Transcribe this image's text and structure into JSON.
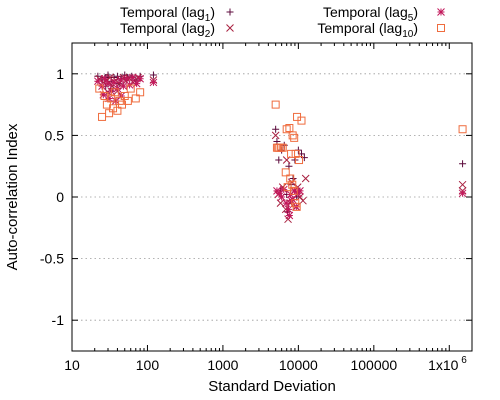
{
  "chart_data": {
    "type": "scatter",
    "xlabel": "Standard Deviation",
    "ylabel": "Auto-correlation Index",
    "xscale": "log",
    "xlim": [
      10,
      2000000
    ],
    "ylim": [
      -1.25,
      1.25
    ],
    "grid": "horizontal dotted",
    "legend_position": "top",
    "x_ticks": [
      {
        "value": 10,
        "label": "10"
      },
      {
        "value": 100,
        "label": "100"
      },
      {
        "value": 1000,
        "label": "1000"
      },
      {
        "value": 10000,
        "label": "10000"
      },
      {
        "value": 100000,
        "label": "100000"
      },
      {
        "value": 1000000,
        "label": "1x10"
      }
    ],
    "x_tick_exponent": "6",
    "y_ticks": [
      {
        "value": 1,
        "label": "1"
      },
      {
        "value": 0.5,
        "label": "0.5"
      },
      {
        "value": 0,
        "label": "0"
      },
      {
        "value": -0.5,
        "label": "-0.5"
      },
      {
        "value": -1,
        "label": "-1"
      }
    ],
    "series": [
      {
        "name": "Temporal (lag1)",
        "label_main": "Temporal (lag",
        "label_sub": "1",
        "marker": "plus",
        "color": "#5c0a3c",
        "points": [
          [
            22,
            0.98
          ],
          [
            25,
            0.95
          ],
          [
            28,
            0.97
          ],
          [
            30,
            0.99
          ],
          [
            33,
            0.94
          ],
          [
            36,
            0.97
          ],
          [
            40,
            0.98
          ],
          [
            45,
            0.96
          ],
          [
            50,
            0.99
          ],
          [
            55,
            0.97
          ],
          [
            62,
            0.98
          ],
          [
            70,
            0.95
          ],
          [
            80,
            0.98
          ],
          [
            120,
            0.99
          ],
          [
            28,
            0.9
          ],
          [
            35,
            0.88
          ],
          [
            42,
            0.92
          ],
          [
            5000,
            0.55
          ],
          [
            5200,
            0.45
          ],
          [
            5500,
            0.3
          ],
          [
            5800,
            0.05
          ],
          [
            6000,
            0.38
          ],
          [
            6500,
            0.42
          ],
          [
            7000,
            0.02
          ],
          [
            7500,
            0.25
          ],
          [
            8000,
            0.1
          ],
          [
            8500,
            0.15
          ],
          [
            9000,
            0.3
          ],
          [
            9500,
            0.0
          ],
          [
            10000,
            0.38
          ],
          [
            11000,
            0.35
          ],
          [
            12000,
            0.32
          ],
          [
            7200,
            -0.12
          ],
          [
            1500000,
            0.27
          ]
        ]
      },
      {
        "name": "Temporal (lag2)",
        "label_main": "Temporal (lag",
        "label_sub": "2",
        "marker": "x",
        "color": "#a8203f",
        "points": [
          [
            23,
            0.96
          ],
          [
            26,
            0.93
          ],
          [
            29,
            0.95
          ],
          [
            32,
            0.97
          ],
          [
            34,
            0.9
          ],
          [
            38,
            0.95
          ],
          [
            42,
            0.92
          ],
          [
            48,
            0.97
          ],
          [
            52,
            0.94
          ],
          [
            58,
            0.96
          ],
          [
            65,
            0.93
          ],
          [
            75,
            0.97
          ],
          [
            120,
            0.95
          ],
          [
            30,
            0.85
          ],
          [
            40,
            0.86
          ],
          [
            5000,
            0.5
          ],
          [
            5400,
            0.02
          ],
          [
            5800,
            -0.05
          ],
          [
            6200,
            0.08
          ],
          [
            6800,
            -0.1
          ],
          [
            7300,
            -0.18
          ],
          [
            7800,
            -0.05
          ],
          [
            8200,
            0.12
          ],
          [
            8800,
            0.05
          ],
          [
            9300,
            -0.08
          ],
          [
            9800,
            0.08
          ],
          [
            10500,
            0.0
          ],
          [
            11500,
            -0.03
          ],
          [
            12500,
            0.15
          ],
          [
            7000,
            0.3
          ],
          [
            1500000,
            0.1
          ],
          [
            1500000,
            0.05
          ]
        ]
      },
      {
        "name": "Temporal (lag5)",
        "label_main": "Temporal (lag",
        "label_sub": "5",
        "marker": "star",
        "color": "#c2185b",
        "points": [
          [
            22,
            0.94
          ],
          [
            25,
            0.9
          ],
          [
            27,
            0.96
          ],
          [
            30,
            0.92
          ],
          [
            33,
            0.86
          ],
          [
            36,
            0.93
          ],
          [
            40,
            0.88
          ],
          [
            44,
            0.95
          ],
          [
            48,
            0.9
          ],
          [
            53,
            0.96
          ],
          [
            58,
            0.91
          ],
          [
            64,
            0.97
          ],
          [
            72,
            0.92
          ],
          [
            80,
            0.96
          ],
          [
            120,
            0.93
          ],
          [
            26,
            0.83
          ],
          [
            31,
            0.8
          ],
          [
            38,
            0.78
          ],
          [
            45,
            0.82
          ],
          [
            5200,
            0.05
          ],
          [
            5600,
            0.03
          ],
          [
            6000,
            0.0
          ],
          [
            6400,
            0.06
          ],
          [
            6900,
            -0.05
          ],
          [
            7400,
            -0.1
          ],
          [
            7900,
            0.02
          ],
          [
            8400,
            -0.02
          ],
          [
            8900,
            0.05
          ],
          [
            9400,
            -0.08
          ],
          [
            9900,
            0.03
          ],
          [
            10500,
            0.05
          ],
          [
            7600,
            -0.15
          ],
          [
            8100,
            -0.03
          ],
          [
            1500000,
            0.03
          ]
        ]
      },
      {
        "name": "Temporal (lag10)",
        "label_main": "Temporal (lag",
        "label_sub": "10",
        "marker": "square",
        "color": "#ef6c3e",
        "points": [
          [
            23,
            0.88
          ],
          [
            25,
            0.65
          ],
          [
            27,
            0.82
          ],
          [
            29,
            0.75
          ],
          [
            31,
            0.68
          ],
          [
            33,
            0.8
          ],
          [
            35,
            0.72
          ],
          [
            37,
            0.85
          ],
          [
            40,
            0.7
          ],
          [
            43,
            0.78
          ],
          [
            46,
            0.75
          ],
          [
            50,
            0.82
          ],
          [
            55,
            0.78
          ],
          [
            60,
            0.88
          ],
          [
            70,
            0.8
          ],
          [
            80,
            0.85
          ],
          [
            5000,
            0.75
          ],
          [
            5200,
            0.4
          ],
          [
            5400,
            0.4
          ],
          [
            5600,
            0.4
          ],
          [
            5900,
            0.4
          ],
          [
            6200,
            0.4
          ],
          [
            7000,
            0.55
          ],
          [
            7600,
            0.56
          ],
          [
            8000,
            0.35
          ],
          [
            8400,
            0.5
          ],
          [
            8800,
            0.48
          ],
          [
            9200,
            0.35
          ],
          [
            9600,
            0.65
          ],
          [
            10200,
            0.3
          ],
          [
            11000,
            0.62
          ],
          [
            6800,
            0.2
          ],
          [
            7200,
            0.08
          ],
          [
            7800,
            0.15
          ],
          [
            8300,
            0.1
          ],
          [
            8700,
            0.05
          ],
          [
            9100,
            -0.05
          ],
          [
            9500,
            -0.08
          ],
          [
            1500000,
            0.55
          ]
        ]
      }
    ]
  }
}
